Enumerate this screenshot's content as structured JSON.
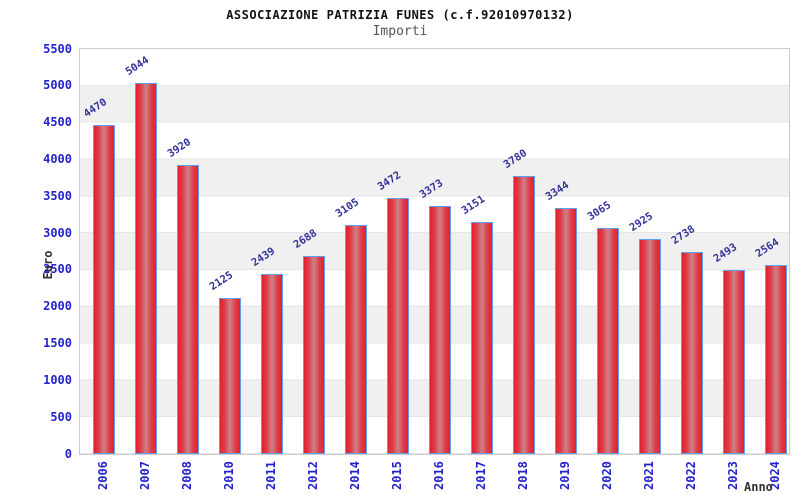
{
  "chart_data": {
    "type": "bar",
    "title": "ASSOCIAZIONE PATRIZIA FUNES (c.f.92010970132)",
    "subtitle": "Importi",
    "xlabel": "Anno",
    "ylabel": "Euro",
    "categories": [
      "2006",
      "2007",
      "2008",
      "2010",
      "2011",
      "2012",
      "2014",
      "2015",
      "2016",
      "2017",
      "2018",
      "2019",
      "2020",
      "2021",
      "2022",
      "2023",
      "2024"
    ],
    "values": [
      4470,
      5044,
      3920,
      2125,
      2439,
      2688,
      3105,
      3472,
      3373,
      3151,
      3780,
      3344,
      3065,
      2925,
      2738,
      2493,
      2564
    ],
    "ylim": [
      0,
      5500
    ],
    "ytick_step": 500,
    "yticks": [
      0,
      500,
      1000,
      1500,
      2000,
      2500,
      3000,
      3500,
      4000,
      4500,
      5000,
      5500
    ],
    "grid": "alternating-horizontal-bands",
    "legend": "none",
    "value_labels": "above-bars-rotated",
    "colors": {
      "bar_edge": "#e2212f",
      "bar_center": "#cd8189",
      "bar_border": "#5d9ff0",
      "axis_tick_label": "#2323cc",
      "value_label": "#333399",
      "band_gray": "#f0f0f0",
      "plot_border": "#cccccc",
      "axis_title": "#333333",
      "title_color": "#111111",
      "subtitle_color": "#555555"
    }
  }
}
